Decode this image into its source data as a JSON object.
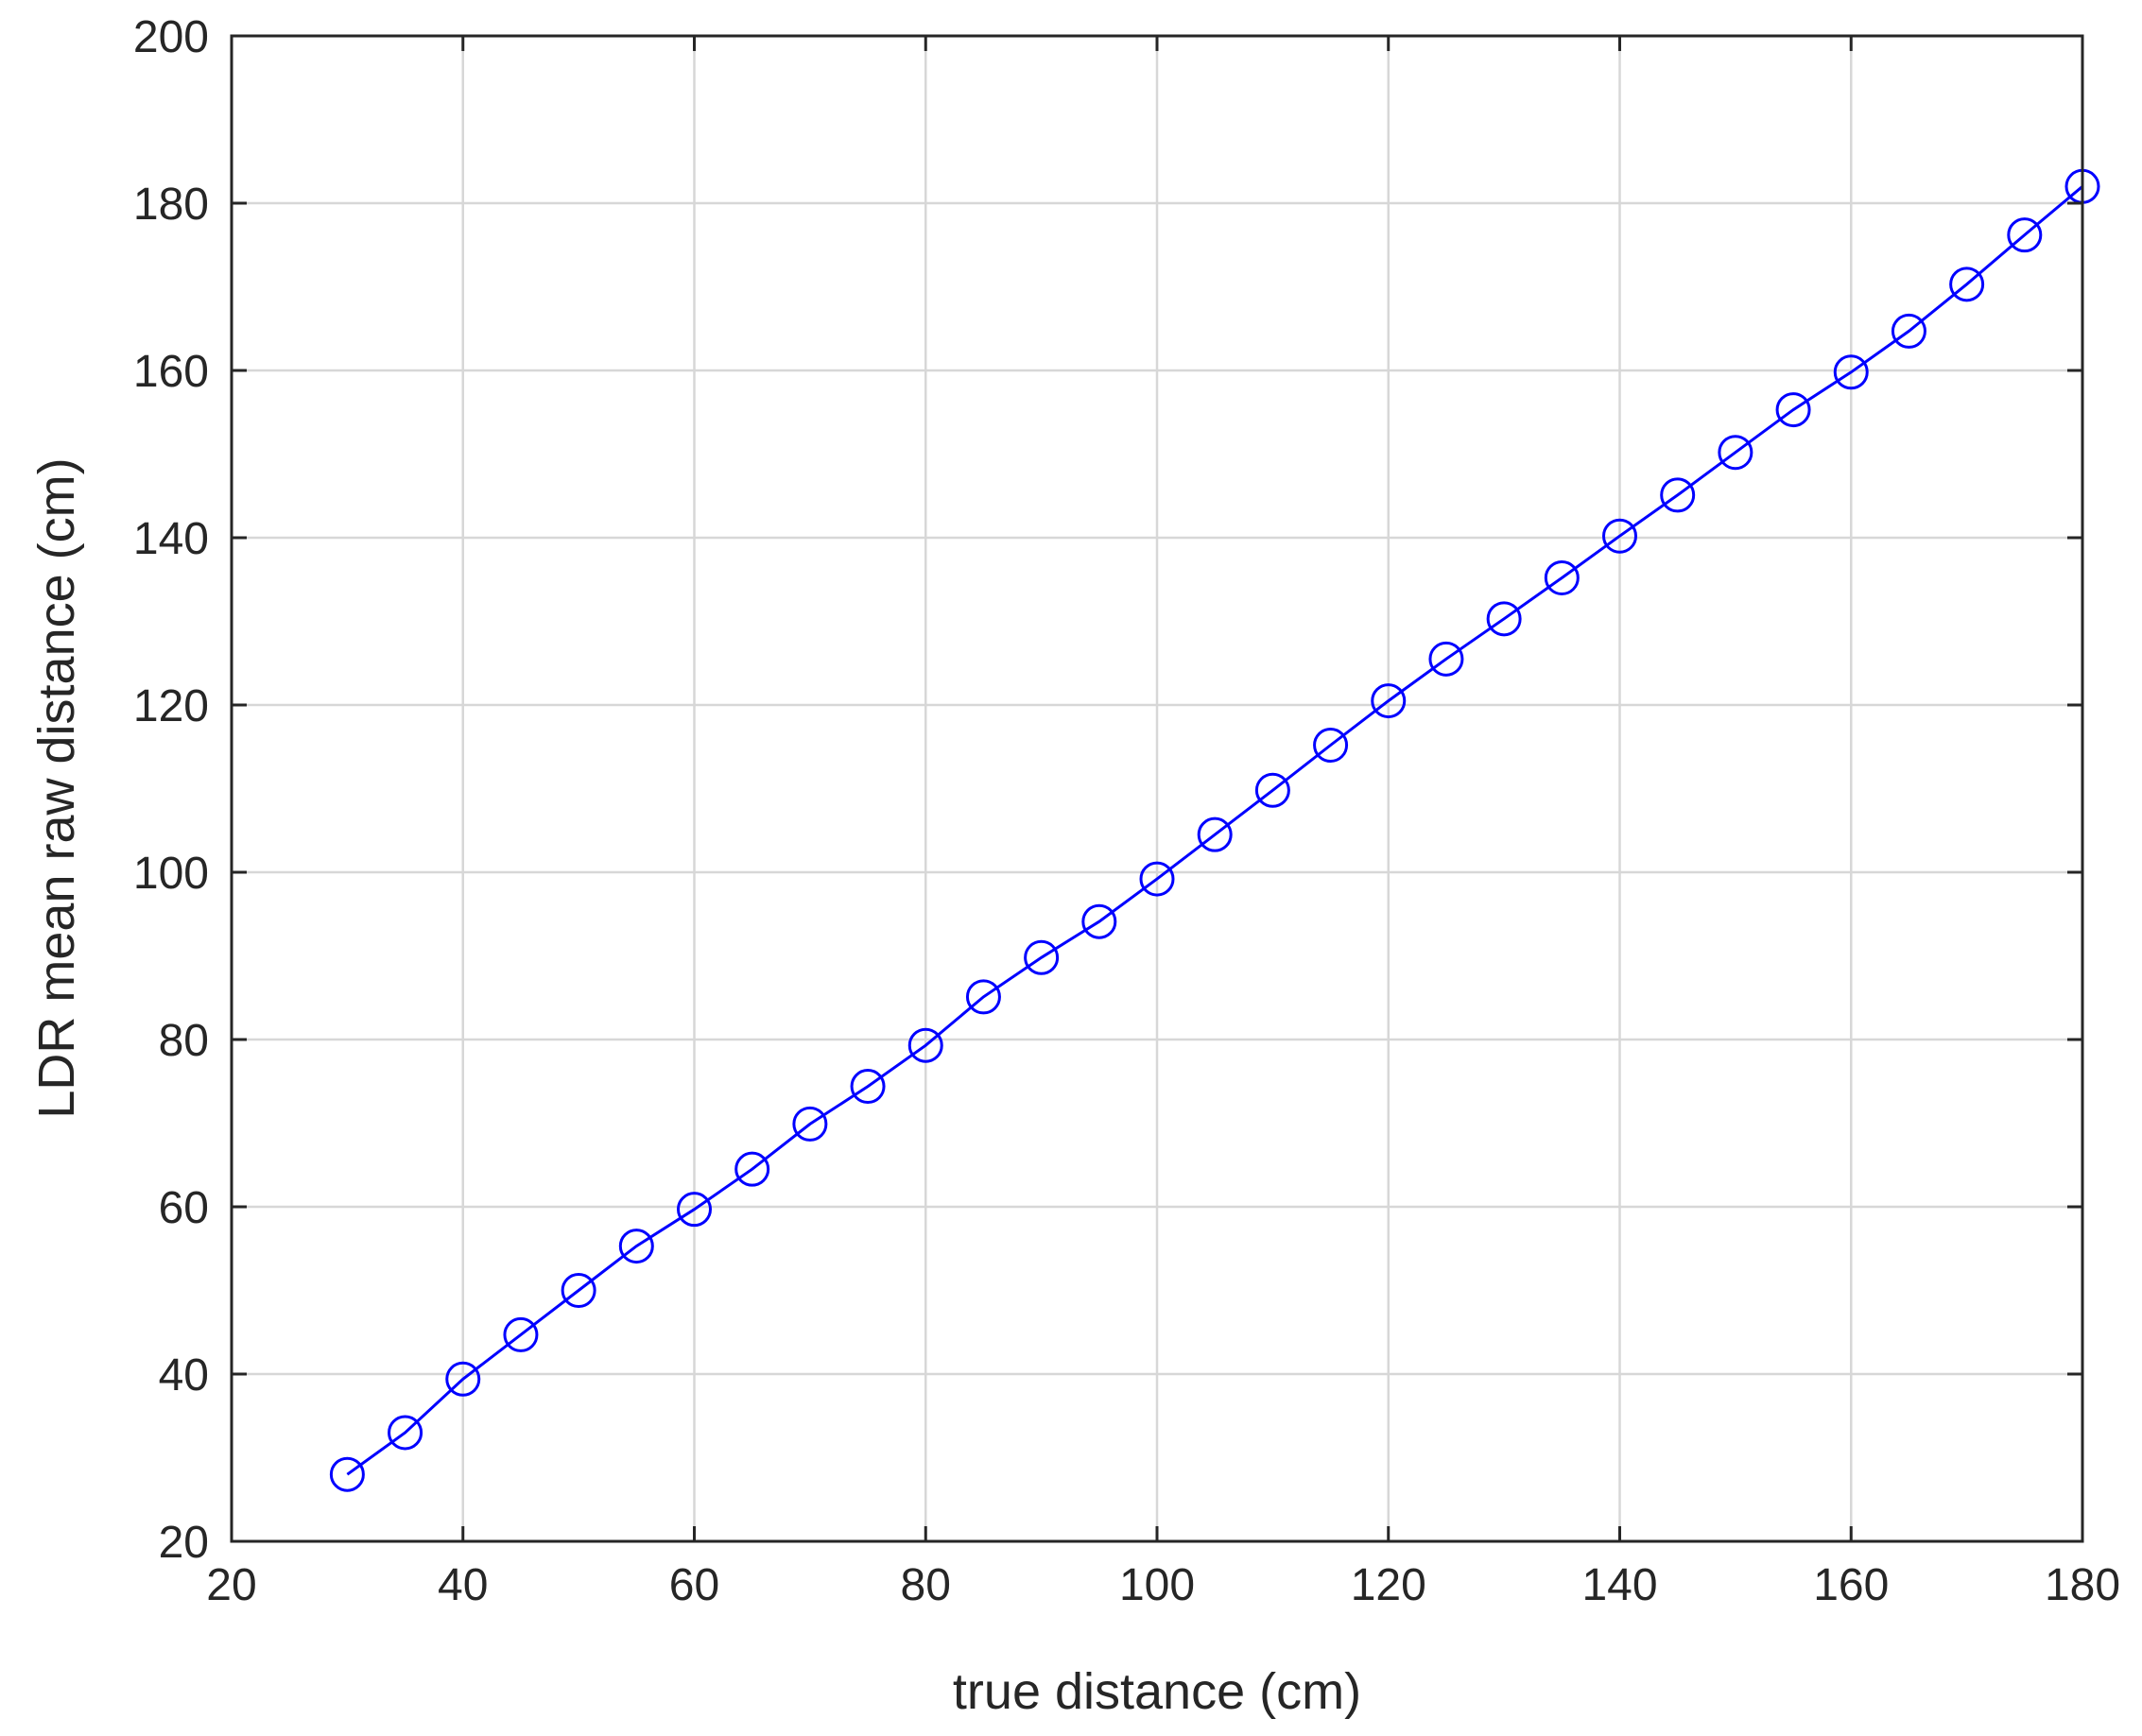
{
  "chart_data": {
    "type": "line",
    "title": "",
    "xlabel": "true distance (cm)",
    "ylabel": "LDR mean raw distance (cm)",
    "xlim": [
      20,
      180
    ],
    "ylim": [
      20,
      200
    ],
    "xticks": [
      20,
      40,
      60,
      80,
      100,
      120,
      140,
      160,
      180
    ],
    "yticks": [
      20,
      40,
      60,
      80,
      100,
      120,
      140,
      160,
      180,
      200
    ],
    "grid": true,
    "legend": "none",
    "series": [
      {
        "color": "#0000ff",
        "marker": "circle",
        "x": [
          30,
          35,
          40,
          45,
          50,
          55,
          60,
          65,
          70,
          75,
          80,
          85,
          90,
          95,
          100,
          105,
          110,
          115,
          120,
          125,
          130,
          135,
          140,
          145,
          150,
          155,
          160,
          165,
          170,
          175,
          180
        ],
        "y": [
          28.0,
          33.0,
          39.4,
          44.7,
          50.0,
          55.3,
          59.7,
          64.5,
          69.9,
          74.4,
          79.3,
          85.1,
          89.8,
          94.1,
          99.2,
          104.5,
          109.8,
          115.2,
          120.5,
          125.5,
          130.3,
          135.2,
          140.2,
          145.1,
          150.2,
          155.3,
          159.8,
          164.7,
          170.3,
          176.2,
          182.0
        ]
      }
    ]
  }
}
